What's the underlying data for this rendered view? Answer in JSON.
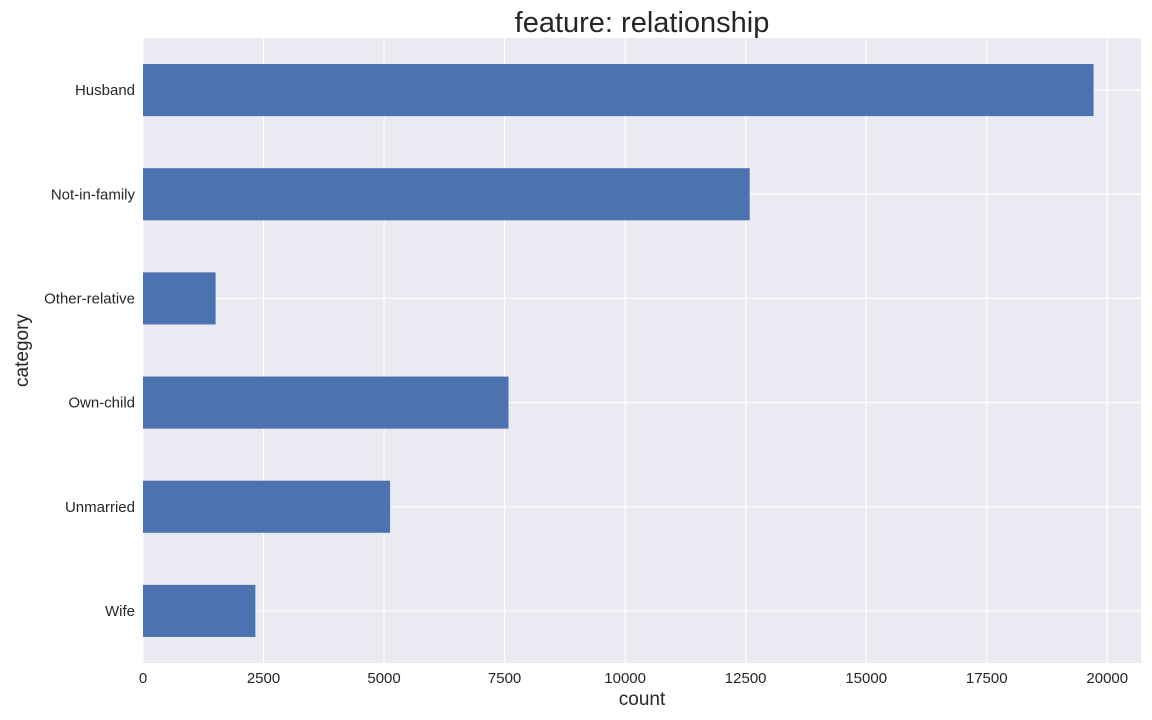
{
  "chart_data": {
    "type": "bar",
    "orientation": "horizontal",
    "title": "feature: relationship",
    "xlabel": "count",
    "ylabel": "category",
    "categories": [
      "Husband",
      "Not-in-family",
      "Other-relative",
      "Own-child",
      "Unmarried",
      "Wife"
    ],
    "values": [
      19716,
      12583,
      1506,
      7581,
      5125,
      2331
    ],
    "xlim": [
      0,
      20700
    ],
    "xticks": [
      0,
      2500,
      5000,
      7500,
      10000,
      12500,
      15000,
      17500,
      20000
    ],
    "xtick_labels": [
      "0",
      "2500",
      "5000",
      "7500",
      "10000",
      "12500",
      "15000",
      "17500",
      "20000"
    ],
    "grid": true,
    "legend": "none",
    "colors": {
      "bar": "#4c72b0",
      "plot_background": "#eaeaf2",
      "grid": "#ffffff",
      "text": "#262626"
    }
  }
}
